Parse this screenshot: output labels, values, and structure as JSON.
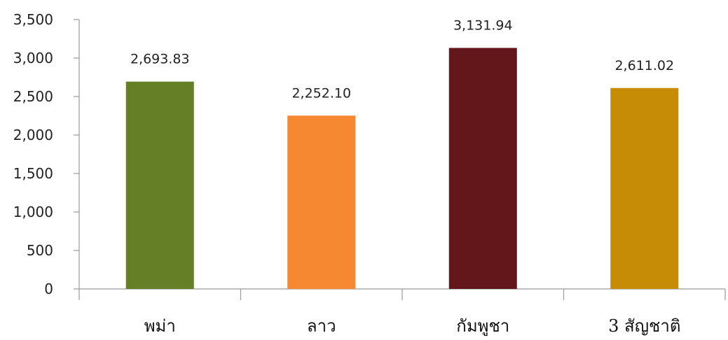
{
  "chart_data": {
    "type": "bar",
    "categories": [
      "พม่า",
      "ลาว",
      "กัมพูชา",
      "3 สัญชาติ"
    ],
    "values": [
      2693.83,
      2252.1,
      3131.94,
      2611.02
    ],
    "data_labels": [
      "2,693.83",
      "2,252.10",
      "3,131.94",
      "2,611.02"
    ],
    "colors": [
      "#647f26",
      "#f78832",
      "#63171a",
      "#c68c05"
    ],
    "ylim": [
      0,
      3500
    ],
    "yticks": [
      0,
      500,
      1000,
      1500,
      2000,
      2500,
      3000,
      3500
    ],
    "ytick_labels": [
      "0",
      "500",
      "1,000",
      "1,500",
      "2,000",
      "2,500",
      "3,000",
      "3,500"
    ],
    "grid": false,
    "legend": "none"
  }
}
